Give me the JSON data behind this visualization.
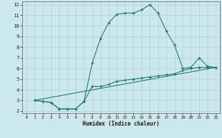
{
  "title": "",
  "xlabel": "Humidex (Indice chaleur)",
  "xlim": [
    -0.5,
    23.5
  ],
  "ylim": [
    1.8,
    12.3
  ],
  "yticks": [
    2,
    3,
    4,
    5,
    6,
    7,
    8,
    9,
    10,
    11,
    12
  ],
  "xticks": [
    0,
    1,
    2,
    3,
    4,
    5,
    6,
    7,
    8,
    9,
    10,
    11,
    12,
    13,
    14,
    15,
    16,
    17,
    18,
    19,
    20,
    21,
    22,
    23
  ],
  "bg_color": "#cde8ec",
  "grid_color": "#aecfd4",
  "line_color": "#1e7a6e",
  "line1_x": [
    1,
    2,
    3,
    4,
    5,
    6,
    7,
    8,
    9,
    10,
    11,
    12,
    13,
    14,
    15,
    16,
    17,
    18,
    19,
    20,
    21,
    22,
    23
  ],
  "line1_y": [
    3.0,
    2.9,
    2.8,
    2.2,
    2.2,
    2.2,
    2.9,
    6.5,
    8.8,
    10.3,
    11.1,
    11.2,
    11.2,
    11.5,
    12.0,
    11.2,
    9.5,
    8.2,
    6.0,
    6.1,
    7.0,
    6.2,
    6.1
  ],
  "line2_x": [
    1,
    2,
    3,
    4,
    5,
    6,
    7,
    8,
    9,
    10,
    11,
    12,
    13,
    14,
    15,
    16,
    17,
    18,
    19,
    20,
    21,
    22,
    23
  ],
  "line2_y": [
    3.0,
    2.9,
    2.8,
    2.2,
    2.2,
    2.2,
    2.9,
    4.3,
    4.3,
    4.5,
    4.8,
    4.9,
    5.0,
    5.1,
    5.2,
    5.3,
    5.4,
    5.5,
    5.8,
    6.0,
    6.1,
    6.1,
    6.1
  ],
  "line3_x": [
    1,
    23
  ],
  "line3_y": [
    3.0,
    6.1
  ]
}
